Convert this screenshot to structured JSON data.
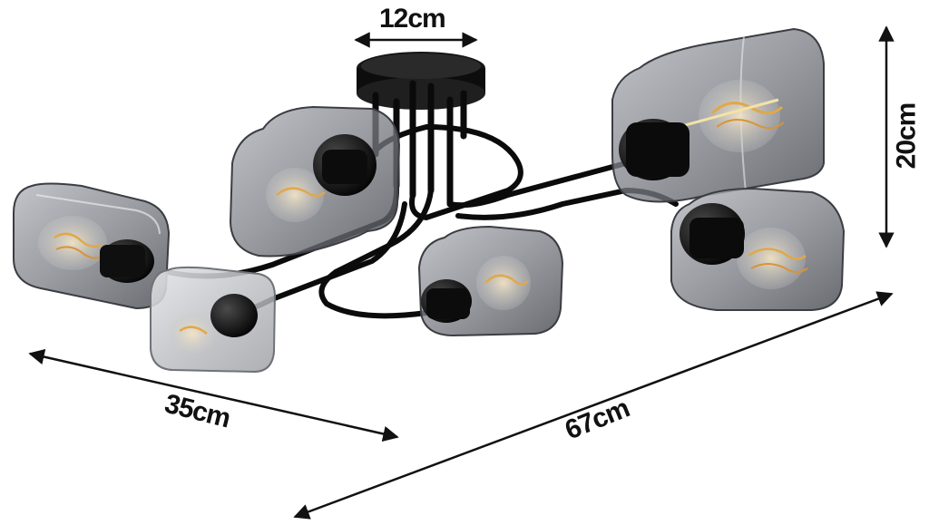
{
  "image": {
    "subject": "six-arm ceiling lamp with smoky glass shades",
    "colors": {
      "background": "#ffffff",
      "frame": "#0d0d0d",
      "glass": "#8a8d94",
      "glass_edge": "#3b3d42",
      "filament": "#e0a84a",
      "arrow": "#111111"
    }
  },
  "dimensions": {
    "top_width": "12cm",
    "height": "20cm",
    "depth": "35cm",
    "width": "67cm"
  }
}
